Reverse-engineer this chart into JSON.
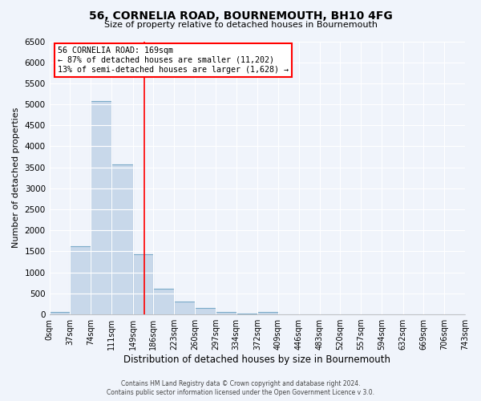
{
  "title": "56, CORNELIA ROAD, BOURNEMOUTH, BH10 4FG",
  "subtitle": "Size of property relative to detached houses in Bournemouth",
  "xlabel": "Distribution of detached houses by size in Bournemouth",
  "ylabel": "Number of detached properties",
  "bar_color": "#c8d8ea",
  "bar_edge_color": "#7aaac8",
  "background_color": "#f0f4fb",
  "grid_color": "#ffffff",
  "vline_x": 169,
  "vline_color": "red",
  "bin_edges": [
    0,
    37,
    74,
    111,
    149,
    186,
    223,
    260,
    297,
    334,
    372,
    409,
    446,
    483,
    520,
    557,
    594,
    632,
    669,
    706,
    743
  ],
  "bin_counts": [
    50,
    1630,
    5080,
    3580,
    1430,
    610,
    300,
    150,
    60,
    25,
    50,
    0,
    0,
    0,
    0,
    0,
    0,
    0,
    0,
    0
  ],
  "ylim": [
    0,
    6500
  ],
  "yticks": [
    0,
    500,
    1000,
    1500,
    2000,
    2500,
    3000,
    3500,
    4000,
    4500,
    5000,
    5500,
    6000,
    6500
  ],
  "xtick_labels": [
    "0sqm",
    "37sqm",
    "74sqm",
    "111sqm",
    "149sqm",
    "186sqm",
    "223sqm",
    "260sqm",
    "297sqm",
    "334sqm",
    "372sqm",
    "409sqm",
    "446sqm",
    "483sqm",
    "520sqm",
    "557sqm",
    "594sqm",
    "632sqm",
    "669sqm",
    "706sqm",
    "743sqm"
  ],
  "annotation_title": "56 CORNELIA ROAD: 169sqm",
  "annotation_line1": "← 87% of detached houses are smaller (11,202)",
  "annotation_line2": "13% of semi-detached houses are larger (1,628) →",
  "annotation_box_color": "#ffffff",
  "annotation_edge_color": "red",
  "footnote1": "Contains HM Land Registry data © Crown copyright and database right 2024.",
  "footnote2": "Contains public sector information licensed under the Open Government Licence v 3.0."
}
